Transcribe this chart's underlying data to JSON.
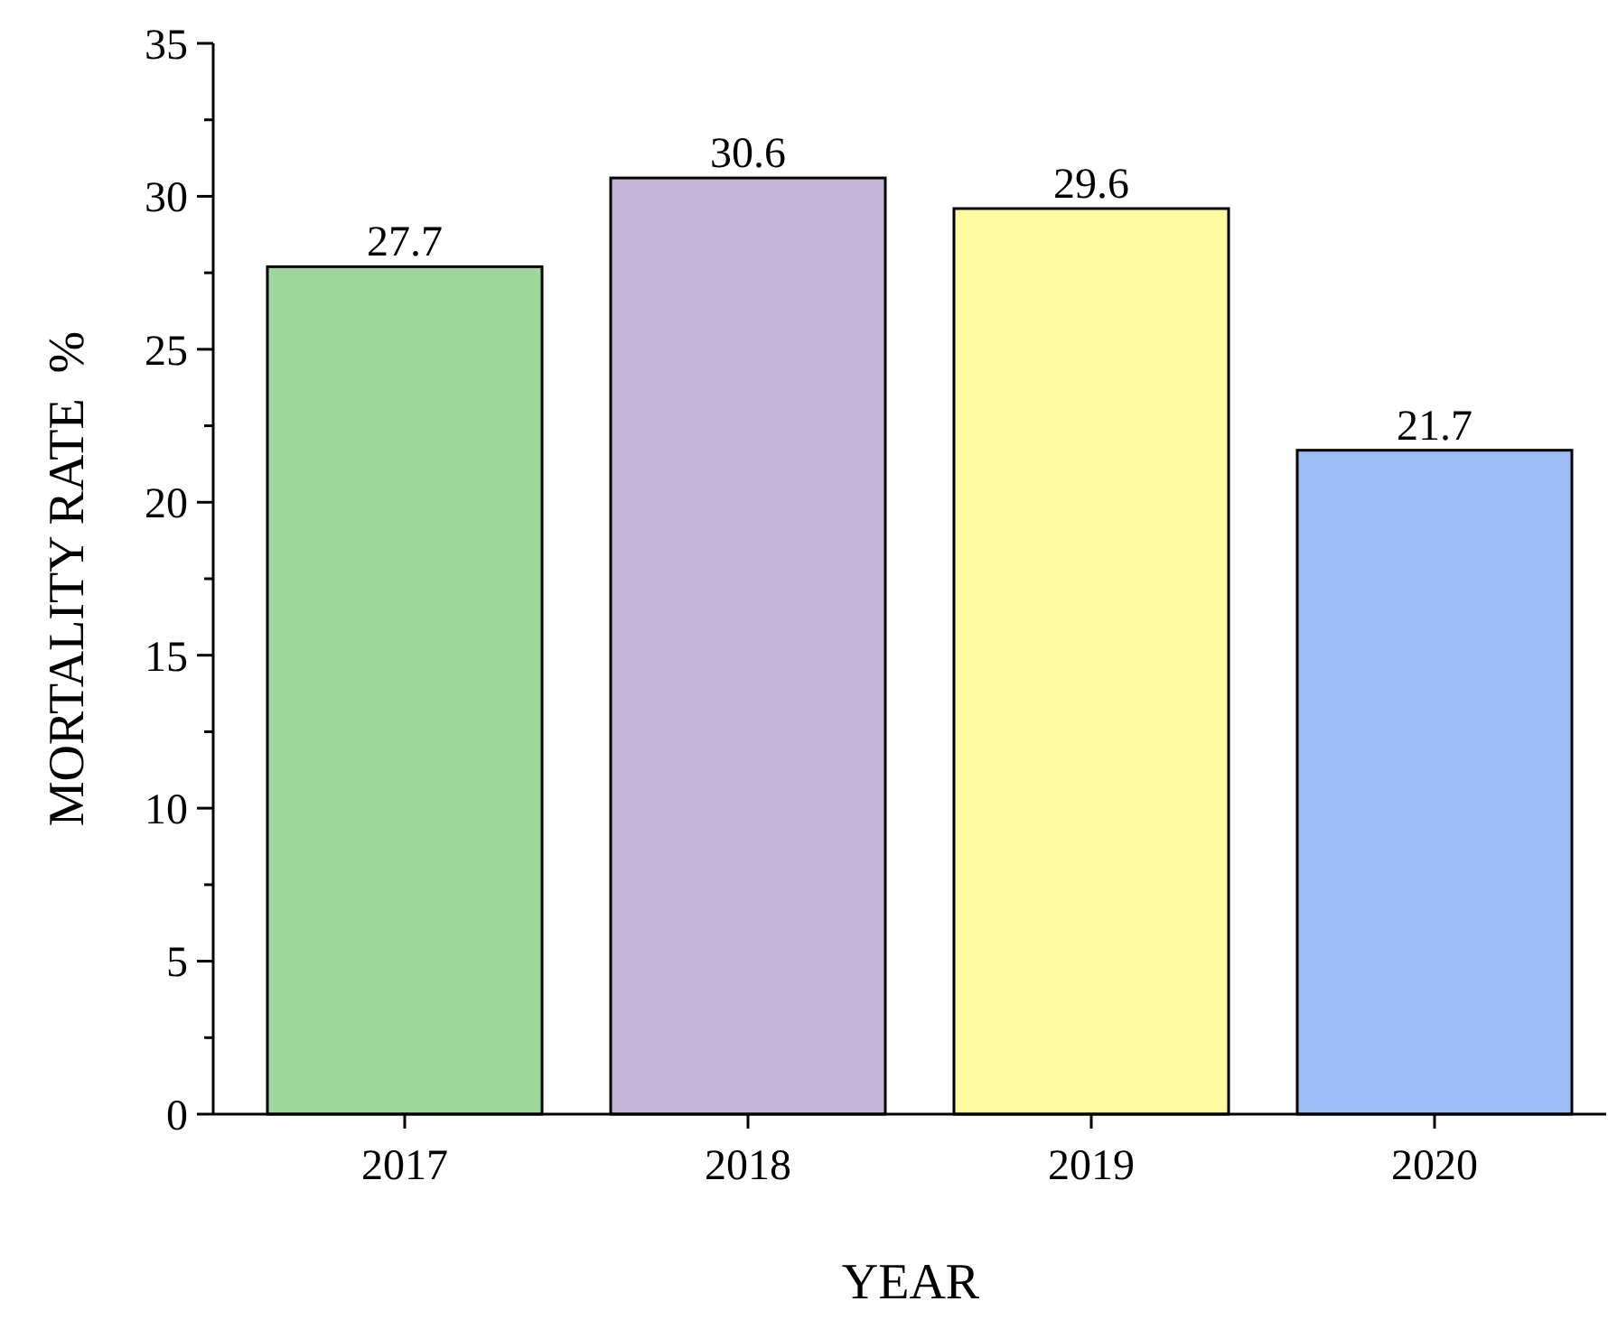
{
  "chart_data": {
    "type": "bar",
    "xlabel": "YEAR",
    "ylabel": "MORTALITY RATE  %",
    "categories": [
      "2017",
      "2018",
      "2019",
      "2020"
    ],
    "values": [
      27.7,
      30.6,
      29.6,
      21.7
    ],
    "colors": [
      "#9dd79b",
      "#c5b3d8",
      "#fdfc9f",
      "#9fbdf5"
    ],
    "ylim": [
      0,
      35
    ],
    "yticks": [
      0,
      {
        "value": 2.5,
        "label": null
      },
      5,
      {
        "value": 7.5,
        "label": null
      },
      10,
      {
        "value": 12.5,
        "label": null
      },
      15,
      {
        "value": 17.5,
        "label": null
      },
      20,
      {
        "value": 22.5,
        "label": null
      },
      25,
      {
        "value": 27.5,
        "label": null
      },
      30,
      {
        "value": 32.5,
        "label": null
      },
      35
    ],
    "data_labels": true,
    "grid": false
  }
}
